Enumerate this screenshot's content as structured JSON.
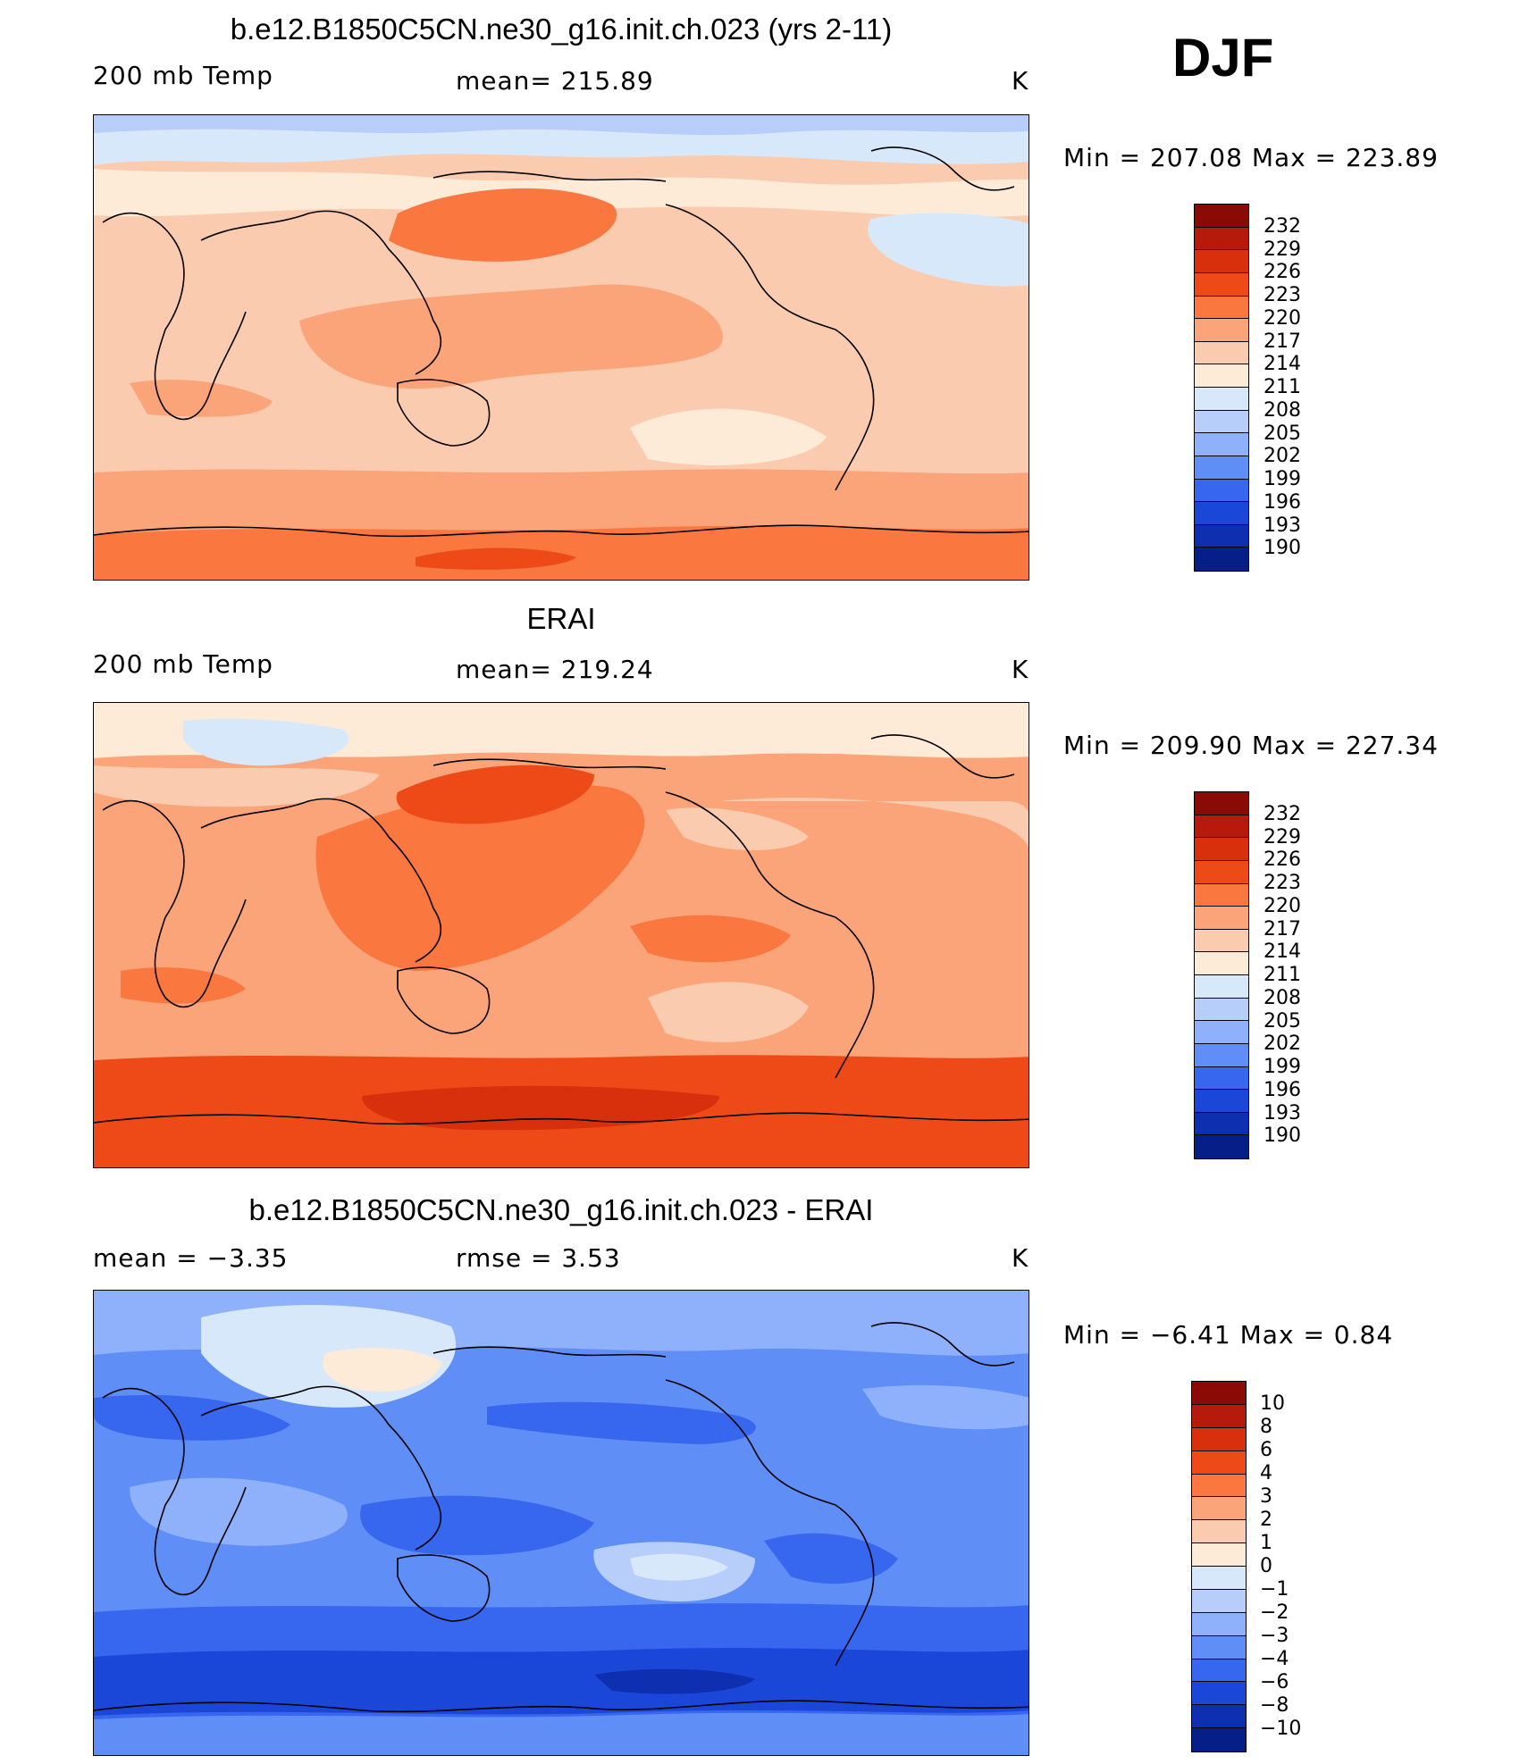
{
  "season": "DJF",
  "panels": [
    {
      "title": "b.e12.B1850C5CN.ne30_g16.init.ch.023 (yrs 2-11)",
      "left_label": "200 mb Temp",
      "center_label": "mean=  215.89",
      "units": "K",
      "minmax": "Min  =  207.08  Max  =  223.89",
      "levels": [
        "232",
        "229",
        "226",
        "223",
        "220",
        "217",
        "214",
        "211",
        "208",
        "205",
        "202",
        "199",
        "196",
        "193",
        "190"
      ],
      "colors": [
        "#8a0a05",
        "#b51a0b",
        "#d8300d",
        "#ee4a18",
        "#fa7840",
        "#fba479",
        "#fbcbb0",
        "#fdebd8",
        "#d8e8fb",
        "#b7cefb",
        "#8fb0fb",
        "#5e8ef6",
        "#3767ee",
        "#1b47d9",
        "#0d2fb0",
        "#061e88"
      ]
    },
    {
      "title": "ERAI",
      "left_label": "200 mb Temp",
      "center_label": "mean=  219.24",
      "units": "K",
      "minmax": "Min  =  209.90  Max  =  227.34",
      "levels": [
        "232",
        "229",
        "226",
        "223",
        "220",
        "217",
        "214",
        "211",
        "208",
        "205",
        "202",
        "199",
        "196",
        "193",
        "190"
      ],
      "colors": [
        "#8a0a05",
        "#b51a0b",
        "#d8300d",
        "#ee4a18",
        "#fa7840",
        "#fba479",
        "#fbcbb0",
        "#fdebd8",
        "#d8e8fb",
        "#b7cefb",
        "#8fb0fb",
        "#5e8ef6",
        "#3767ee",
        "#1b47d9",
        "#0d2fb0",
        "#061e88"
      ]
    },
    {
      "title": "b.e12.B1850C5CN.ne30_g16.init.ch.023 - ERAI",
      "left_label": "mean  =    −3.35",
      "center_label": "rmse  =     3.53",
      "units": "K",
      "minmax": "Min  =   −6.41  Max  =     0.84",
      "levels": [
        "10",
        "8",
        "6",
        "4",
        "3",
        "2",
        "1",
        "0",
        "−1",
        "−2",
        "−3",
        "−4",
        "−6",
        "−8",
        "−10"
      ],
      "colors": [
        "#8a0a05",
        "#b51a0b",
        "#d8300d",
        "#ee4a18",
        "#fa7840",
        "#fba479",
        "#fbcbb0",
        "#fdebd8",
        "#d8e8fb",
        "#b7cefb",
        "#8fb0fb",
        "#5e8ef6",
        "#3767ee",
        "#1b47d9",
        "#0d2fb0",
        "#061e88"
      ]
    }
  ]
}
